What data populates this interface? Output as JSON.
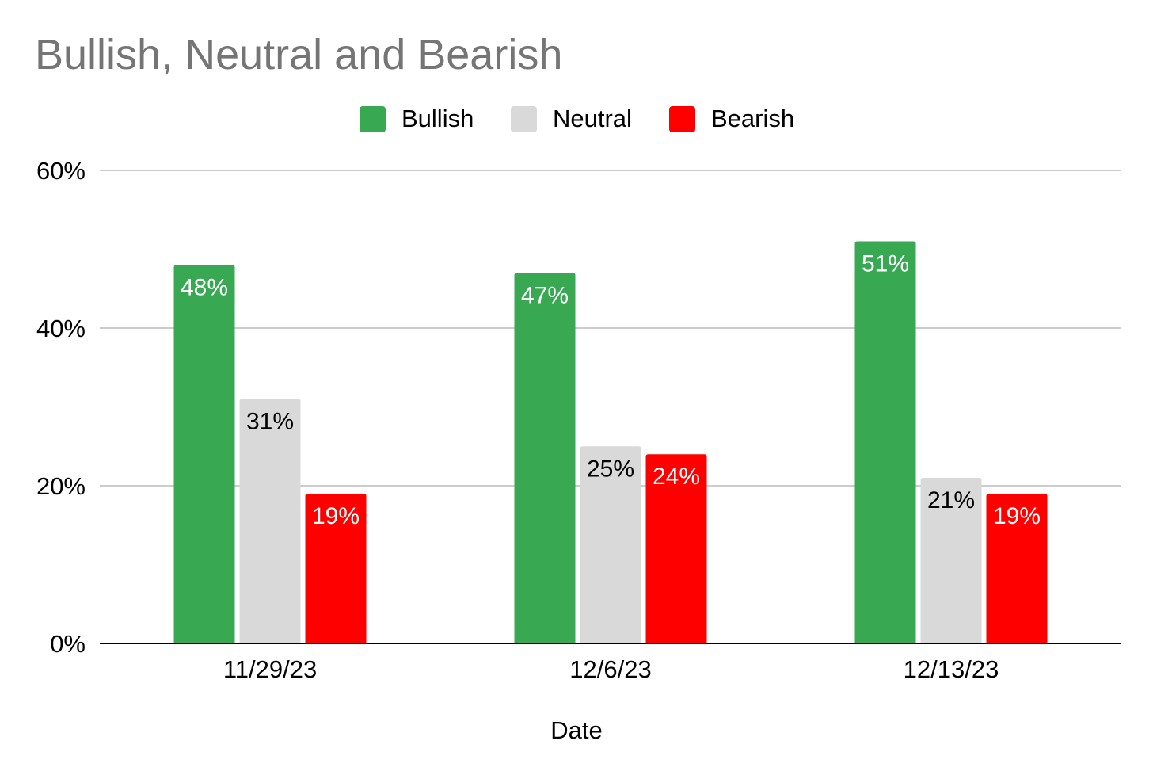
{
  "title": "Bullish, Neutral and Bearish",
  "legend": [
    {
      "label": "Bullish",
      "color": "#38a853"
    },
    {
      "label": "Neutral",
      "color": "#d9d9d9"
    },
    {
      "label": "Bearish",
      "color": "#ff0000"
    }
  ],
  "chart_data": {
    "type": "bar",
    "title": "Bullish, Neutral and Bearish",
    "xlabel": "Date",
    "ylabel": "",
    "categories": [
      "11/29/23",
      "12/6/23",
      "12/13/23"
    ],
    "series": [
      {
        "name": "Bullish",
        "color": "#38a853",
        "label_color": "#ffffff",
        "values": [
          48,
          47,
          51
        ],
        "labels": [
          "48%",
          "47%",
          "51%"
        ]
      },
      {
        "name": "Neutral",
        "color": "#d9d9d9",
        "label_color": "#000000",
        "values": [
          31,
          25,
          21
        ],
        "labels": [
          "31%",
          "25%",
          "21%"
        ]
      },
      {
        "name": "Bearish",
        "color": "#ff0000",
        "label_color": "#ffffff",
        "values": [
          19,
          24,
          19
        ],
        "labels": [
          "19%",
          "24%",
          "19%"
        ]
      }
    ],
    "ylim": [
      0,
      60
    ],
    "yticks": [
      0,
      20,
      40,
      60
    ],
    "ytick_labels": [
      "0%",
      "20%",
      "40%",
      "60%"
    ],
    "grid": true,
    "legend_position": "top"
  }
}
